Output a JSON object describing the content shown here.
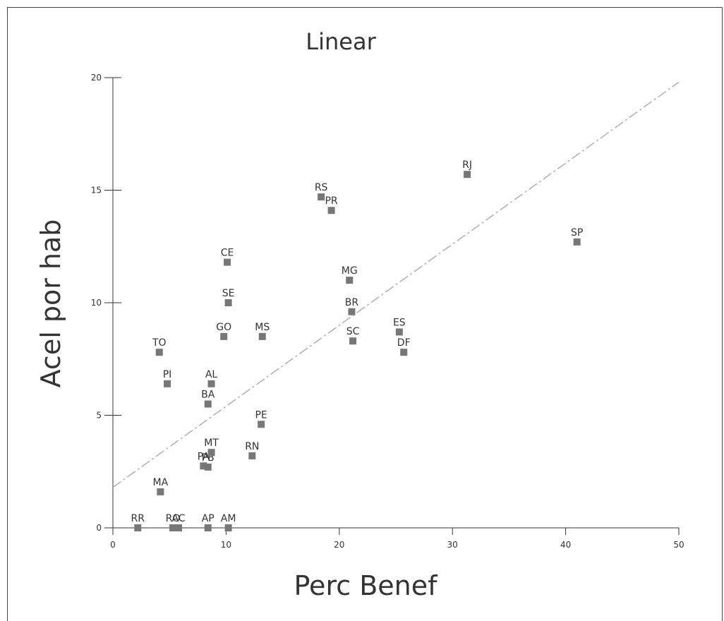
{
  "chart_data": {
    "type": "scatter",
    "title": "Linear",
    "xlabel": "Perc Benef",
    "ylabel": "Acel por hab",
    "xlim": [
      0,
      50
    ],
    "ylim": [
      0,
      20
    ],
    "x_ticks": [
      0,
      10,
      20,
      30,
      40,
      50
    ],
    "y_ticks": [
      0,
      5,
      10,
      15,
      20
    ],
    "x_tick_labels": [
      "0",
      "10",
      "20",
      "30",
      "40",
      "50"
    ],
    "y_tick_labels": [
      "0",
      "5",
      "10",
      "15",
      "20"
    ],
    "grid": false,
    "marker_color": "#777777",
    "fit_line": {
      "style": "dash-dot",
      "color": "#aaaaaa",
      "x": [
        0,
        50
      ],
      "y": [
        1.8,
        19.8
      ]
    },
    "points": [
      {
        "label": "RR",
        "x": 2.2,
        "y": 0.0
      },
      {
        "label": "RO",
        "x": 5.3,
        "y": 0.0
      },
      {
        "label": "AC",
        "x": 5.8,
        "y": 0.0
      },
      {
        "label": "AP",
        "x": 8.4,
        "y": 0.0
      },
      {
        "label": "AM",
        "x": 10.2,
        "y": 0.0
      },
      {
        "label": "MA",
        "x": 4.2,
        "y": 1.6
      },
      {
        "label": "PA",
        "x": 8.0,
        "y": 2.75
      },
      {
        "label": "PB",
        "x": 8.4,
        "y": 2.7
      },
      {
        "label": "MT",
        "x": 8.7,
        "y": 3.35
      },
      {
        "label": "RN",
        "x": 12.3,
        "y": 3.2
      },
      {
        "label": "PE",
        "x": 13.1,
        "y": 4.6
      },
      {
        "label": "BA",
        "x": 8.4,
        "y": 5.5
      },
      {
        "label": "AL",
        "x": 8.7,
        "y": 6.4
      },
      {
        "label": "PI",
        "x": 4.8,
        "y": 6.4
      },
      {
        "label": "TO",
        "x": 4.1,
        "y": 7.8
      },
      {
        "label": "GO",
        "x": 9.8,
        "y": 8.5
      },
      {
        "label": "MS",
        "x": 13.2,
        "y": 8.5
      },
      {
        "label": "SE",
        "x": 10.2,
        "y": 10.0
      },
      {
        "label": "CE",
        "x": 10.1,
        "y": 11.8
      },
      {
        "label": "RS",
        "x": 18.4,
        "y": 14.7
      },
      {
        "label": "PR",
        "x": 19.3,
        "y": 14.1
      },
      {
        "label": "MG",
        "x": 20.9,
        "y": 11.0
      },
      {
        "label": "BR",
        "x": 21.1,
        "y": 9.6
      },
      {
        "label": "SC",
        "x": 21.2,
        "y": 8.3
      },
      {
        "label": "ES",
        "x": 25.3,
        "y": 8.7
      },
      {
        "label": "DF",
        "x": 25.7,
        "y": 7.8
      },
      {
        "label": "RJ",
        "x": 31.3,
        "y": 15.7
      },
      {
        "label": "SP",
        "x": 41.0,
        "y": 12.7
      }
    ]
  }
}
